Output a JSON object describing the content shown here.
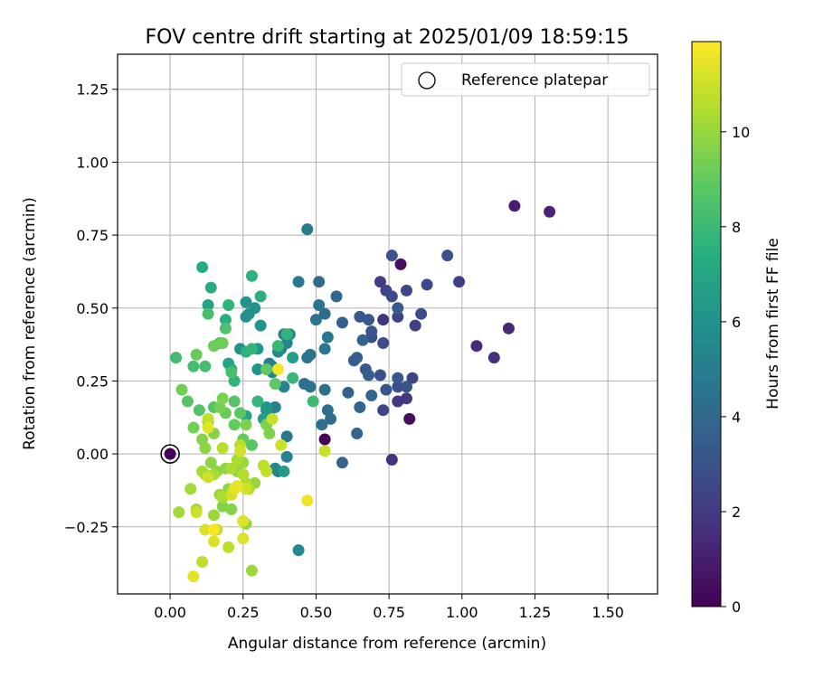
{
  "chart_data": {
    "type": "scatter",
    "title": "FOV centre drift starting at 2025/01/09 18:59:15",
    "xlabel": "Angular distance from reference (arcmin)",
    "ylabel": "Rotation from reference (arcmin)",
    "xlim": [
      -0.18,
      1.67
    ],
    "ylim": [
      -0.48,
      1.37
    ],
    "xticks": [
      0.0,
      0.25,
      0.5,
      0.75,
      1.0,
      1.25,
      1.5
    ],
    "xtick_labels": [
      "0.00",
      "0.25",
      "0.50",
      "0.75",
      "1.00",
      "1.25",
      "1.50"
    ],
    "yticks": [
      -0.25,
      0.0,
      0.25,
      0.5,
      0.75,
      1.0,
      1.25
    ],
    "ytick_labels": [
      "−0.25",
      "0.00",
      "0.25",
      "0.50",
      "0.75",
      "1.00",
      "1.25"
    ],
    "grid": true,
    "legend": {
      "placement": "top-right",
      "entries": [
        "Reference platepar"
      ]
    },
    "reference_point": {
      "x": 0.0,
      "y": 0.0,
      "label": "Reference platepar"
    },
    "colorbar": {
      "label": "Hours from first FF file",
      "colormap": "viridis",
      "range": [
        0,
        11.9
      ],
      "ticks": [
        0,
        2,
        4,
        6,
        8,
        10
      ],
      "tick_labels": [
        "0",
        "2",
        "4",
        "6",
        "8",
        "10"
      ]
    },
    "series": [
      {
        "points": [
          {
            "x": 0.53,
            "y": 0.05,
            "t": 0.1
          },
          {
            "x": 0.82,
            "y": 0.12,
            "t": 0.4
          },
          {
            "x": 0.79,
            "y": 0.65,
            "t": 0.5
          },
          {
            "x": 1.18,
            "y": 0.85,
            "t": 1.0
          },
          {
            "x": 1.3,
            "y": 0.83,
            "t": 1.2
          },
          {
            "x": 1.16,
            "y": 0.43,
            "t": 1.3
          },
          {
            "x": 1.05,
            "y": 0.37,
            "t": 1.4
          },
          {
            "x": 1.11,
            "y": 0.33,
            "t": 1.6
          },
          {
            "x": 0.76,
            "y": -0.02,
            "t": 1.7
          },
          {
            "x": 0.73,
            "y": 0.46,
            "t": 1.8
          },
          {
            "x": 0.78,
            "y": 0.18,
            "t": 1.9
          },
          {
            "x": 0.81,
            "y": 0.19,
            "t": 2.0
          },
          {
            "x": 0.72,
            "y": 0.59,
            "t": 2.1
          },
          {
            "x": 0.99,
            "y": 0.59,
            "t": 2.2
          },
          {
            "x": 0.84,
            "y": 0.44,
            "t": 2.2
          },
          {
            "x": 0.78,
            "y": 0.47,
            "t": 2.3
          },
          {
            "x": 0.83,
            "y": 0.26,
            "t": 2.4
          },
          {
            "x": 0.73,
            "y": 0.15,
            "t": 2.4
          },
          {
            "x": 0.74,
            "y": 0.56,
            "t": 2.5
          },
          {
            "x": 0.81,
            "y": 0.56,
            "t": 2.5
          },
          {
            "x": 0.88,
            "y": 0.58,
            "t": 2.6
          },
          {
            "x": 0.86,
            "y": 0.48,
            "t": 2.7
          },
          {
            "x": 0.76,
            "y": 0.54,
            "t": 2.7
          },
          {
            "x": 0.73,
            "y": 0.38,
            "t": 2.8
          },
          {
            "x": 0.78,
            "y": 0.23,
            "t": 2.8
          },
          {
            "x": 0.72,
            "y": 0.27,
            "t": 2.9
          },
          {
            "x": 0.69,
            "y": 0.4,
            "t": 2.9
          },
          {
            "x": 0.76,
            "y": 0.68,
            "t": 3.0
          },
          {
            "x": 0.95,
            "y": 0.68,
            "t": 3.0
          },
          {
            "x": 0.74,
            "y": 0.22,
            "t": 3.1
          },
          {
            "x": 0.81,
            "y": 0.23,
            "t": 3.1
          },
          {
            "x": 0.78,
            "y": 0.26,
            "t": 3.2
          },
          {
            "x": 0.69,
            "y": 0.42,
            "t": 3.2
          },
          {
            "x": 0.65,
            "y": 0.47,
            "t": 3.3
          },
          {
            "x": 0.68,
            "y": 0.46,
            "t": 3.3
          },
          {
            "x": 0.78,
            "y": 0.5,
            "t": 3.4
          },
          {
            "x": 0.67,
            "y": 0.29,
            "t": 3.4
          },
          {
            "x": 0.68,
            "y": 0.27,
            "t": 3.5
          },
          {
            "x": 0.63,
            "y": 0.32,
            "t": 3.5
          },
          {
            "x": 0.64,
            "y": 0.33,
            "t": 3.6
          },
          {
            "x": 0.59,
            "y": 0.45,
            "t": 3.6
          },
          {
            "x": 0.66,
            "y": 0.39,
            "t": 3.7
          },
          {
            "x": 0.61,
            "y": 0.21,
            "t": 3.7
          },
          {
            "x": 0.65,
            "y": 0.16,
            "t": 3.8
          },
          {
            "x": 0.59,
            "y": -0.03,
            "t": 3.8
          },
          {
            "x": 0.64,
            "y": 0.07,
            "t": 3.9
          },
          {
            "x": 0.69,
            "y": 0.2,
            "t": 3.9
          },
          {
            "x": 0.57,
            "y": 0.54,
            "t": 4.0
          },
          {
            "x": 0.53,
            "y": 0.48,
            "t": 4.1
          },
          {
            "x": 0.51,
            "y": 0.59,
            "t": 4.1
          },
          {
            "x": 0.55,
            "y": 0.12,
            "t": 4.2
          },
          {
            "x": 0.54,
            "y": 0.15,
            "t": 4.2
          },
          {
            "x": 0.53,
            "y": 0.22,
            "t": 4.3
          },
          {
            "x": 0.52,
            "y": 0.1,
            "t": 4.3
          },
          {
            "x": 0.48,
            "y": 0.23,
            "t": 4.4
          },
          {
            "x": 0.46,
            "y": 0.24,
            "t": 4.4
          },
          {
            "x": 0.47,
            "y": 0.33,
            "t": 4.5
          },
          {
            "x": 0.5,
            "y": 0.46,
            "t": 4.5
          },
          {
            "x": 0.51,
            "y": 0.51,
            "t": 4.6
          },
          {
            "x": 0.48,
            "y": 0.34,
            "t": 4.6
          },
          {
            "x": 0.54,
            "y": 0.4,
            "t": 4.7
          },
          {
            "x": 0.53,
            "y": 0.36,
            "t": 4.7
          },
          {
            "x": 0.4,
            "y": 0.06,
            "t": 4.8
          },
          {
            "x": 0.44,
            "y": 0.59,
            "t": 4.8
          },
          {
            "x": 0.47,
            "y": 0.77,
            "t": 4.9
          },
          {
            "x": 0.38,
            "y": 0.36,
            "t": 5.0
          },
          {
            "x": 0.39,
            "y": 0.41,
            "t": 5.0
          },
          {
            "x": 0.37,
            "y": -0.06,
            "t": 5.1
          },
          {
            "x": 0.35,
            "y": 0.3,
            "t": 5.1
          },
          {
            "x": 0.36,
            "y": 0.16,
            "t": 5.2
          },
          {
            "x": 0.34,
            "y": 0.31,
            "t": 5.2
          },
          {
            "x": 0.39,
            "y": 0.23,
            "t": 5.3
          },
          {
            "x": 0.4,
            "y": -0.01,
            "t": 5.3
          },
          {
            "x": 0.4,
            "y": 0.38,
            "t": 5.4
          },
          {
            "x": 0.35,
            "y": 0.28,
            "t": 5.4
          },
          {
            "x": 0.36,
            "y": -0.05,
            "t": 5.5
          },
          {
            "x": 0.41,
            "y": 0.41,
            "t": 5.5
          },
          {
            "x": 0.44,
            "y": -0.33,
            "t": 5.6
          },
          {
            "x": 0.34,
            "y": 0.13,
            "t": 5.7
          },
          {
            "x": 0.37,
            "y": 0.35,
            "t": 5.7
          },
          {
            "x": 0.33,
            "y": 0.15,
            "t": 5.8
          },
          {
            "x": 0.24,
            "y": 0.36,
            "t": 5.9
          },
          {
            "x": 0.26,
            "y": 0.47,
            "t": 5.9
          },
          {
            "x": 0.26,
            "y": 0.52,
            "t": 6.0
          },
          {
            "x": 0.27,
            "y": 0.48,
            "t": 6.0
          },
          {
            "x": 0.29,
            "y": 0.5,
            "t": 6.1
          },
          {
            "x": 0.3,
            "y": 0.29,
            "t": 6.2
          },
          {
            "x": 0.31,
            "y": 0.44,
            "t": 6.2
          },
          {
            "x": 0.33,
            "y": 0.16,
            "t": 6.3
          },
          {
            "x": 0.3,
            "y": 0.36,
            "t": 6.3
          },
          {
            "x": 0.37,
            "y": 0.37,
            "t": 6.4
          },
          {
            "x": 0.39,
            "y": -0.06,
            "t": 6.5
          },
          {
            "x": 0.32,
            "y": 0.12,
            "t": 6.6
          },
          {
            "x": 0.42,
            "y": 0.33,
            "t": 6.7
          },
          {
            "x": 0.26,
            "y": 0.13,
            "t": 6.8
          },
          {
            "x": 0.13,
            "y": 0.51,
            "t": 6.9
          },
          {
            "x": 0.2,
            "y": 0.31,
            "t": 7.0
          },
          {
            "x": 0.21,
            "y": 0.29,
            "t": 7.1
          },
          {
            "x": 0.14,
            "y": 0.57,
            "t": 7.2
          },
          {
            "x": 0.11,
            "y": 0.64,
            "t": 7.3
          },
          {
            "x": 0.19,
            "y": 0.46,
            "t": 7.4
          },
          {
            "x": 0.26,
            "y": 0.35,
            "t": 7.5
          },
          {
            "x": 0.31,
            "y": 0.54,
            "t": 7.5
          },
          {
            "x": 0.28,
            "y": 0.61,
            "t": 7.6
          },
          {
            "x": 0.22,
            "y": 0.25,
            "t": 7.7
          },
          {
            "x": 0.2,
            "y": 0.51,
            "t": 7.7
          },
          {
            "x": 0.4,
            "y": 0.41,
            "t": 7.8
          },
          {
            "x": 0.28,
            "y": 0.36,
            "t": 7.8
          },
          {
            "x": 0.3,
            "y": 0.18,
            "t": 7.9
          },
          {
            "x": 0.37,
            "y": 0.37,
            "t": 8.0
          },
          {
            "x": 0.42,
            "y": 0.26,
            "t": 8.0
          },
          {
            "x": 0.49,
            "y": 0.18,
            "t": 8.1
          },
          {
            "x": 0.02,
            "y": 0.33,
            "t": 8.2
          },
          {
            "x": 0.08,
            "y": 0.3,
            "t": 8.3
          },
          {
            "x": 0.12,
            "y": 0.3,
            "t": 8.3
          },
          {
            "x": 0.13,
            "y": 0.48,
            "t": 8.4
          },
          {
            "x": 0.21,
            "y": 0.28,
            "t": 8.4
          },
          {
            "x": 0.17,
            "y": 0.38,
            "t": 8.5
          },
          {
            "x": 0.19,
            "y": 0.43,
            "t": 8.5
          },
          {
            "x": 0.1,
            "y": 0.15,
            "t": 8.6
          },
          {
            "x": 0.15,
            "y": 0.16,
            "t": 8.6
          },
          {
            "x": 0.06,
            "y": 0.18,
            "t": 8.7
          },
          {
            "x": 0.22,
            "y": 0.18,
            "t": 8.7
          },
          {
            "x": 0.24,
            "y": 0.14,
            "t": 8.8
          },
          {
            "x": 0.28,
            "y": 0.03,
            "t": 8.8
          },
          {
            "x": 0.36,
            "y": 0.24,
            "t": 8.9
          },
          {
            "x": 0.33,
            "y": 0.29,
            "t": 8.9
          },
          {
            "x": 0.22,
            "y": 0.1,
            "t": 9.0
          },
          {
            "x": 0.25,
            "y": 0.05,
            "t": 9.0
          },
          {
            "x": 0.19,
            "y": 0.14,
            "t": 9.1
          },
          {
            "x": 0.09,
            "y": 0.34,
            "t": 9.1
          },
          {
            "x": 0.15,
            "y": 0.37,
            "t": 9.2
          },
          {
            "x": 0.18,
            "y": 0.38,
            "t": 9.2
          },
          {
            "x": 0.04,
            "y": 0.22,
            "t": 9.3
          },
          {
            "x": 0.08,
            "y": 0.09,
            "t": 9.3
          },
          {
            "x": 0.13,
            "y": 0.11,
            "t": 9.4
          },
          {
            "x": 0.17,
            "y": 0.16,
            "t": 9.4
          },
          {
            "x": 0.26,
            "y": 0.1,
            "t": 9.5
          },
          {
            "x": 0.18,
            "y": 0.19,
            "t": 9.5
          },
          {
            "x": 0.33,
            "y": 0.1,
            "t": 9.6
          },
          {
            "x": 0.34,
            "y": 0.07,
            "t": 9.6
          },
          {
            "x": 0.18,
            "y": -0.18,
            "t": 9.6
          },
          {
            "x": 0.21,
            "y": -0.19,
            "t": 9.7
          },
          {
            "x": 0.15,
            "y": 0.07,
            "t": 9.7
          },
          {
            "x": 0.11,
            "y": 0.05,
            "t": 9.7
          },
          {
            "x": 0.12,
            "y": 0.02,
            "t": 9.8
          },
          {
            "x": 0.14,
            "y": -0.03,
            "t": 9.8
          },
          {
            "x": 0.16,
            "y": -0.06,
            "t": 9.8
          },
          {
            "x": 0.19,
            "y": -0.05,
            "t": 9.9
          },
          {
            "x": 0.2,
            "y": -0.12,
            "t": 9.9
          },
          {
            "x": 0.23,
            "y": -0.06,
            "t": 9.9
          },
          {
            "x": 0.25,
            "y": -0.03,
            "t": 10.0
          },
          {
            "x": 0.26,
            "y": -0.24,
            "t": 10.0
          },
          {
            "x": 0.29,
            "y": -0.1,
            "t": 10.0
          },
          {
            "x": 0.28,
            "y": -0.4,
            "t": 10.1
          },
          {
            "x": 0.17,
            "y": -0.14,
            "t": 10.1
          },
          {
            "x": 0.15,
            "y": -0.21,
            "t": 10.1
          },
          {
            "x": 0.09,
            "y": -0.19,
            "t": 10.2
          },
          {
            "x": 0.07,
            "y": -0.12,
            "t": 10.2
          },
          {
            "x": 0.03,
            "y": -0.2,
            "t": 10.2
          },
          {
            "x": 0.11,
            "y": -0.06,
            "t": 10.3
          },
          {
            "x": 0.12,
            "y": -0.07,
            "t": 10.3
          },
          {
            "x": 0.15,
            "y": -0.07,
            "t": 10.3
          },
          {
            "x": 0.18,
            "y": -0.15,
            "t": 10.4
          },
          {
            "x": 0.21,
            "y": -0.05,
            "t": 10.4
          },
          {
            "x": 0.23,
            "y": -0.02,
            "t": 10.4
          },
          {
            "x": 0.25,
            "y": -0.07,
            "t": 10.5
          },
          {
            "x": 0.26,
            "y": -0.1,
            "t": 10.5
          },
          {
            "x": 0.27,
            "y": -0.12,
            "t": 10.5
          },
          {
            "x": 0.24,
            "y": 0.03,
            "t": 10.6
          },
          {
            "x": 0.18,
            "y": 0.02,
            "t": 10.6
          },
          {
            "x": 0.16,
            "y": -0.26,
            "t": 10.6
          },
          {
            "x": 0.11,
            "y": -0.37,
            "t": 10.7
          },
          {
            "x": 0.2,
            "y": -0.32,
            "t": 10.7
          },
          {
            "x": 0.32,
            "y": -0.04,
            "t": 10.7
          },
          {
            "x": 0.33,
            "y": -0.06,
            "t": 10.8
          },
          {
            "x": 0.13,
            "y": 0.12,
            "t": 10.8
          },
          {
            "x": 0.35,
            "y": 0.12,
            "t": 10.9
          },
          {
            "x": 0.53,
            "y": 0.01,
            "t": 10.9
          },
          {
            "x": 0.38,
            "y": 0.03,
            "t": 11.0
          },
          {
            "x": 0.09,
            "y": -0.2,
            "t": 11.0
          },
          {
            "x": 0.13,
            "y": -0.08,
            "t": 11.0
          },
          {
            "x": 0.24,
            "y": 0.01,
            "t": 11.1
          },
          {
            "x": 0.26,
            "y": -0.12,
            "t": 11.1
          },
          {
            "x": 0.21,
            "y": -0.14,
            "t": 11.1
          },
          {
            "x": 0.12,
            "y": -0.26,
            "t": 11.2
          },
          {
            "x": 0.15,
            "y": -0.3,
            "t": 11.2
          },
          {
            "x": 0.25,
            "y": -0.29,
            "t": 11.3
          },
          {
            "x": 0.25,
            "y": -0.23,
            "t": 11.3
          },
          {
            "x": 0.08,
            "y": -0.42,
            "t": 11.4
          },
          {
            "x": 0.13,
            "y": 0.09,
            "t": 11.4
          },
          {
            "x": 0.22,
            "y": -0.12,
            "t": 11.5
          },
          {
            "x": 0.23,
            "y": -0.11,
            "t": 11.5
          },
          {
            "x": 0.47,
            "y": -0.16,
            "t": 11.6
          },
          {
            "x": 0.37,
            "y": 0.29,
            "t": 11.7
          },
          {
            "x": 0.15,
            "y": -0.26,
            "t": 11.8
          }
        ]
      }
    ]
  }
}
